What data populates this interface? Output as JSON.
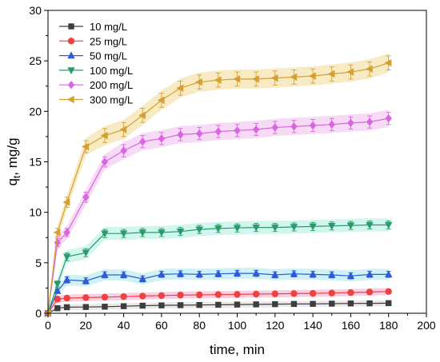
{
  "chart_data": {
    "type": "line",
    "xlabel": "time, min",
    "ylabel": "q",
    "ylabel_subscript": "t",
    "ylabel_suffix": ", mg/g",
    "xlim": [
      0,
      200
    ],
    "ylim": [
      0,
      30
    ],
    "xticks": [
      0,
      20,
      40,
      60,
      80,
      100,
      120,
      140,
      160,
      180,
      200
    ],
    "yticks": [
      0,
      5,
      10,
      15,
      20,
      25,
      30
    ],
    "grid": false,
    "legend_position": "top-left",
    "x": [
      0,
      5,
      10,
      20,
      30,
      40,
      50,
      60,
      70,
      80,
      90,
      100,
      110,
      120,
      130,
      140,
      150,
      160,
      170,
      180
    ],
    "series": [
      {
        "name": "10 mg/L",
        "marker": "square",
        "color": "#3d3d3d",
        "band_color": "#e6e6e6",
        "values": [
          0,
          0.5,
          0.6,
          0.62,
          0.65,
          0.7,
          0.75,
          0.78,
          0.8,
          0.82,
          0.84,
          0.86,
          0.88,
          0.9,
          0.92,
          0.93,
          0.95,
          0.97,
          0.98,
          1.0
        ],
        "errors": [
          0,
          0.05,
          0.05,
          0.05,
          0.05,
          0.05,
          0.05,
          0.05,
          0.05,
          0.05,
          0.05,
          0.05,
          0.05,
          0.05,
          0.05,
          0.05,
          0.05,
          0.05,
          0.05,
          0.05
        ]
      },
      {
        "name": "25 mg/L",
        "marker": "circle",
        "color": "#f0413e",
        "band_color": "#f8c7df",
        "values": [
          0,
          1.4,
          1.5,
          1.55,
          1.6,
          1.65,
          1.7,
          1.75,
          1.8,
          1.82,
          1.85,
          1.87,
          1.9,
          1.92,
          1.95,
          1.97,
          2.0,
          2.05,
          2.1,
          2.15
        ],
        "errors": [
          0,
          0.1,
          0.1,
          0.1,
          0.1,
          0.1,
          0.1,
          0.1,
          0.1,
          0.1,
          0.1,
          0.1,
          0.1,
          0.1,
          0.1,
          0.1,
          0.1,
          0.1,
          0.1,
          0.1
        ]
      },
      {
        "name": "50 mg/L",
        "marker": "triangle-up",
        "color": "#2f5bd9",
        "band_color": "#c7f0f4",
        "values": [
          0,
          2.2,
          3.3,
          3.2,
          3.8,
          3.8,
          3.4,
          3.85,
          3.9,
          3.85,
          3.9,
          3.95,
          3.95,
          3.8,
          3.9,
          3.85,
          3.8,
          3.7,
          3.85,
          3.85
        ],
        "errors": [
          0,
          0.2,
          0.3,
          0.3,
          0.3,
          0.3,
          0.3,
          0.3,
          0.3,
          0.3,
          0.3,
          0.3,
          0.3,
          0.3,
          0.3,
          0.3,
          0.3,
          0.3,
          0.3,
          0.3
        ]
      },
      {
        "name": "100 mg/L",
        "marker": "triangle-down",
        "color": "#2b9a6a",
        "band_color": "#c9f4ec",
        "values": [
          0,
          2.9,
          5.6,
          6.0,
          7.9,
          7.9,
          8.0,
          8.0,
          8.1,
          8.3,
          8.4,
          8.45,
          8.5,
          8.5,
          8.55,
          8.6,
          8.65,
          8.7,
          8.75,
          8.75
        ],
        "errors": [
          0,
          0.3,
          0.4,
          0.4,
          0.4,
          0.4,
          0.4,
          0.4,
          0.4,
          0.4,
          0.4,
          0.4,
          0.4,
          0.4,
          0.4,
          0.4,
          0.4,
          0.4,
          0.4,
          0.4
        ]
      },
      {
        "name": "200 mg/L",
        "marker": "diamond",
        "color": "#d866e0",
        "band_color": "#f6d3f4",
        "values": [
          0,
          7.0,
          8.0,
          11.5,
          15.0,
          16.1,
          17.0,
          17.3,
          17.7,
          17.8,
          18.0,
          18.1,
          18.2,
          18.4,
          18.5,
          18.6,
          18.7,
          18.85,
          18.95,
          19.3
        ],
        "errors": [
          0,
          0.4,
          0.4,
          0.5,
          0.5,
          0.6,
          0.6,
          0.6,
          0.6,
          0.6,
          0.6,
          0.6,
          0.6,
          0.6,
          0.6,
          0.6,
          0.6,
          0.6,
          0.6,
          0.6
        ]
      },
      {
        "name": "300 mg/L",
        "marker": "triangle-left",
        "color": "#d4a032",
        "band_color": "#f7e7b8",
        "values": [
          0,
          8.0,
          11.0,
          16.5,
          17.6,
          18.2,
          19.6,
          21.1,
          22.3,
          22.9,
          23.1,
          23.2,
          23.2,
          23.3,
          23.4,
          23.5,
          23.7,
          23.9,
          24.2,
          24.8
        ],
        "errors": [
          0,
          0.4,
          0.5,
          0.6,
          0.7,
          0.7,
          0.7,
          0.7,
          0.7,
          0.7,
          0.7,
          0.7,
          0.7,
          0.7,
          0.7,
          0.7,
          0.7,
          0.7,
          0.7,
          0.7
        ]
      }
    ]
  }
}
